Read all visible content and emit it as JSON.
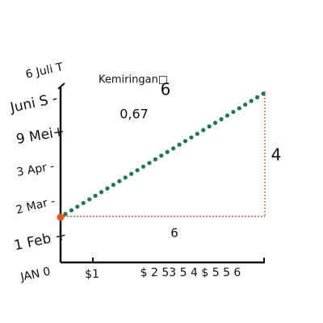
{
  "y_labels": [
    "6 Juli T",
    "Juni S -",
    "9 Mei+",
    "3 Apr -",
    "2 Mar -",
    "1 Feb +",
    "JAN 0"
  ],
  "x_labels": [
    "$1",
    "$ 2 53 5 4 $ 5 5 6"
  ],
  "slope_title": "Kemiringan□",
  "slope_title_number": "6",
  "slope_value": "0,67",
  "rise": "4",
  "run": "6"
}
